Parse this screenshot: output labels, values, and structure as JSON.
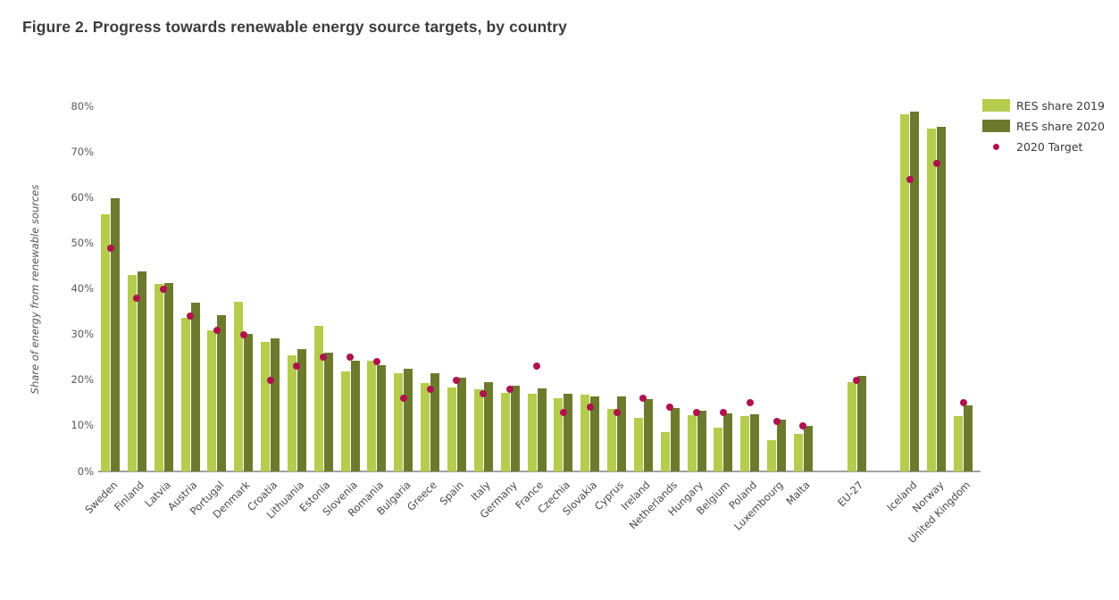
{
  "title": "Figure 2. Progress towards renewable energy source targets, by country",
  "y_axis": {
    "label": "Share of energy from renewable sources",
    "ticks": [
      "0%",
      "10%",
      "20%",
      "30%",
      "40%",
      "50%",
      "60%",
      "70%",
      "80%"
    ]
  },
  "legend": [
    {
      "label": "RES share 2019",
      "marker": "swatch",
      "color": "#b5cc4d"
    },
    {
      "label": "RES share 2020",
      "marker": "swatch",
      "color": "#6d7a2d"
    },
    {
      "label": "2020 Target",
      "marker": "dot",
      "color": "#b0124d"
    }
  ],
  "colors": {
    "res_2019": "#b5cc4d",
    "res_2020": "#6d7a2d",
    "target": "#b0124d",
    "axis_line": "#a3a3a3",
    "text": "#4a4a4a"
  },
  "chart_data": {
    "type": "bar",
    "title": "Figure 2. Progress towards renewable energy source targets, by country",
    "xlabel": "",
    "ylabel": "Share of energy from renewable sources",
    "ylim": [
      0,
      80
    ],
    "y_tick_step": 10,
    "grid": false,
    "legend_position": "top-right",
    "categories": [
      "Sweden",
      "Finland",
      "Latvia",
      "Austria",
      "Portugal",
      "Denmark",
      "Croatia",
      "Lithuania",
      "Estonia",
      "Slovenia",
      "Romania",
      "Bulgaria",
      "Greece",
      "Spain",
      "Italy",
      "Germany",
      "France",
      "Czechia",
      "Slovakia",
      "Cyprus",
      "Ireland",
      "Netherlands",
      "Hungary",
      "Belgium",
      "Poland",
      "Luxembourg",
      "Malta",
      "EU-27",
      "Iceland",
      "Norway",
      "United Kingdom"
    ],
    "series": [
      {
        "name": "RES share 2019",
        "color": "#b5cc4d",
        "values": [
          56.4,
          43.1,
          41.0,
          33.6,
          31.0,
          37.2,
          28.4,
          25.5,
          31.8,
          21.9,
          24.2,
          21.5,
          19.4,
          18.3,
          18.0,
          17.3,
          17.1,
          16.1,
          16.8,
          13.7,
          11.8,
          8.7,
          12.4,
          9.6,
          12.1,
          6.8,
          8.2,
          19.5,
          78.3,
          75.2,
          12.2
        ]
      },
      {
        "name": "RES share 2020",
        "color": "#6d7a2d",
        "values": [
          59.8,
          43.8,
          41.3,
          37.0,
          34.3,
          30.1,
          29.2,
          26.9,
          26.1,
          24.3,
          23.2,
          22.6,
          21.6,
          20.5,
          19.5,
          18.7,
          18.2,
          17.1,
          16.5,
          16.5,
          15.9,
          13.9,
          13.3,
          12.7,
          12.5,
          11.3,
          9.9,
          21.0,
          78.8,
          75.5,
          14.4
        ]
      }
    ],
    "target_series": {
      "name": "2020 Target",
      "color": "#b0124d",
      "values": [
        49,
        38,
        40,
        34,
        31,
        30,
        20,
        23,
        25,
        25,
        24,
        16,
        18,
        20,
        17,
        18,
        23,
        13,
        14,
        13,
        16,
        14,
        13,
        13,
        15,
        11,
        10,
        20,
        64,
        67.5,
        15
      ]
    },
    "group_gaps_after": [
      "Malta",
      "EU-27"
    ]
  }
}
